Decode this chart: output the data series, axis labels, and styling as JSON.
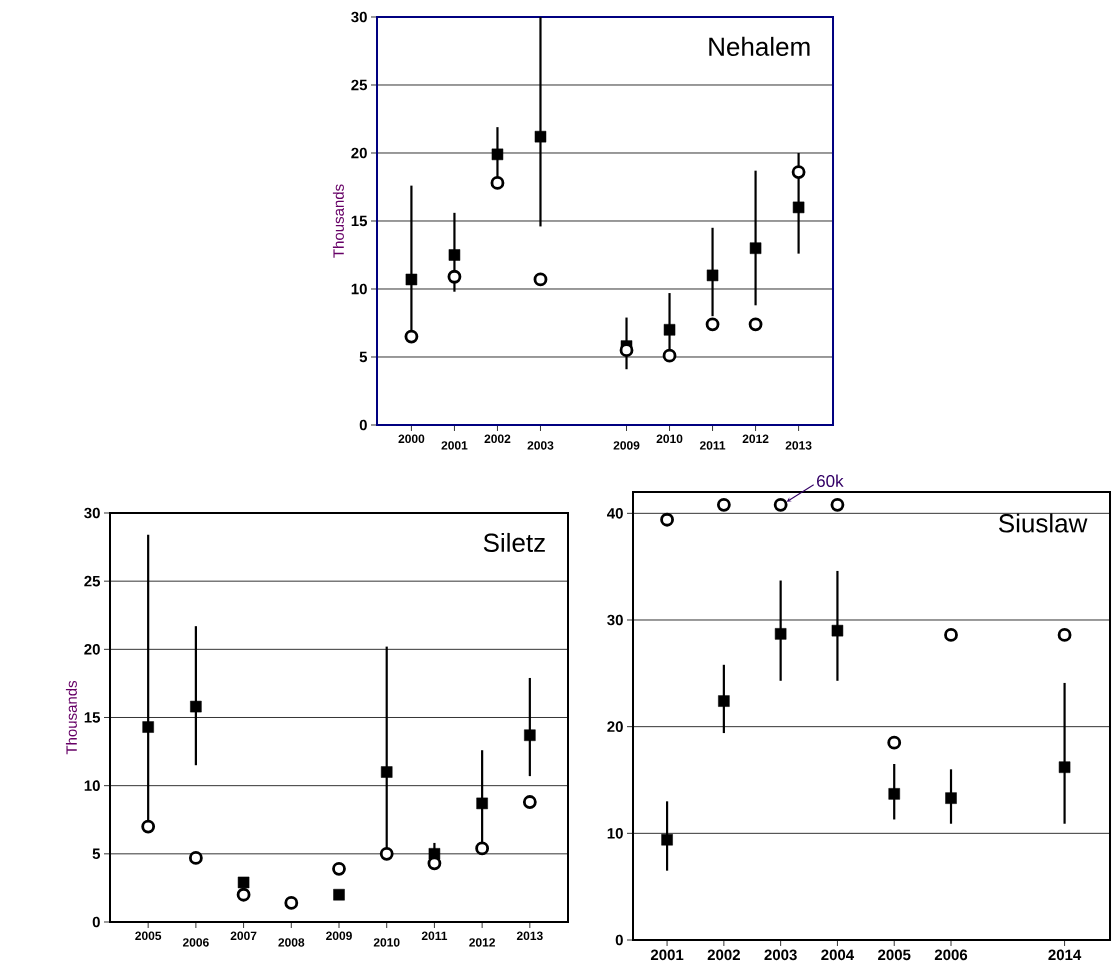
{
  "chart_data": [
    {
      "type": "scatter",
      "title": "Nehalem",
      "ylabel": "Thousands",
      "categories": [
        "2000",
        "2001",
        "2002",
        "2003",
        null,
        "2009",
        "2010",
        "2011",
        "2012",
        "2013"
      ],
      "ylim": [
        0,
        30
      ],
      "yticks": [
        0,
        5,
        10,
        15,
        20,
        25,
        30
      ],
      "grid": "y",
      "series": [
        {
          "color": "#000000",
          "marker": "square",
          "values": [
            10.7,
            12.5,
            19.9,
            21.2,
            null,
            5.8,
            7.0,
            11.0,
            13.0,
            16.0
          ],
          "errors": [
            [
              6.5,
              17.6
            ],
            [
              9.8,
              15.6
            ],
            [
              17.8,
              21.9
            ],
            [
              14.6,
              30
            ],
            null,
            [
              4.1,
              7.9
            ],
            [
              5.1,
              9.7
            ],
            [
              8.0,
              14.5
            ],
            [
              8.8,
              18.7
            ],
            [
              12.6,
              20.0
            ]
          ]
        },
        {
          "color": "#000000",
          "marker": "circle",
          "values": [
            6.5,
            10.9,
            17.8,
            10.7,
            null,
            5.5,
            5.1,
            7.4,
            7.4,
            18.6
          ]
        }
      ]
    },
    {
      "type": "scatter",
      "title": "Siletz",
      "ylabel": "Thousands",
      "categories": [
        "2005",
        "2006",
        "2007",
        "2008",
        "2009",
        "2010",
        "2011",
        "2012",
        "2013"
      ],
      "ylim": [
        0,
        30
      ],
      "yticks": [
        0,
        5,
        10,
        15,
        20,
        25,
        30
      ],
      "grid": "y",
      "series": [
        {
          "color": "#000000",
          "marker": "square",
          "values": [
            14.3,
            15.8,
            2.9,
            null,
            2.0,
            11.0,
            5.0,
            8.7,
            13.7
          ],
          "errors": [
            [
              7.1,
              28.4
            ],
            [
              11.5,
              21.7
            ],
            null,
            null,
            null,
            [
              5.0,
              20.2
            ],
            [
              4.4,
              5.8
            ],
            [
              5.4,
              12.6
            ],
            [
              10.7,
              17.9
            ]
          ]
        },
        {
          "color": "#000000",
          "marker": "circle",
          "values": [
            7.0,
            4.7,
            2.0,
            1.4,
            3.9,
            5.0,
            4.3,
            5.4,
            8.8
          ]
        }
      ]
    },
    {
      "type": "scatter",
      "title": "Siuslaw",
      "categories": [
        "2001",
        "2002",
        "2003",
        "2004",
        "2005",
        "2006",
        null,
        "2014"
      ],
      "ylim": [
        0,
        42
      ],
      "yticks": [
        0,
        10,
        20,
        30,
        40
      ],
      "grid": "y",
      "annotations": [
        {
          "text": "60k",
          "x": "2003",
          "y": 40.8
        }
      ],
      "series": [
        {
          "color": "#000000",
          "marker": "square",
          "values": [
            9.4,
            22.4,
            28.7,
            29.0,
            13.7,
            13.3,
            null,
            16.2
          ],
          "errors": [
            [
              6.5,
              13.0
            ],
            [
              19.4,
              25.8
            ],
            [
              24.3,
              33.7
            ],
            [
              24.3,
              34.6
            ],
            [
              11.3,
              16.5
            ],
            [
              10.9,
              16.0
            ],
            null,
            [
              10.9,
              24.1
            ]
          ]
        },
        {
          "color": "#000000",
          "marker": "circle",
          "values": [
            39.4,
            40.8,
            40.8,
            40.8,
            18.5,
            28.6,
            null,
            28.6
          ]
        }
      ]
    }
  ]
}
